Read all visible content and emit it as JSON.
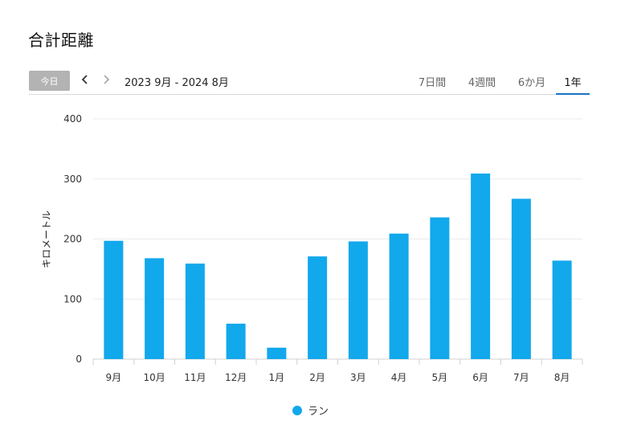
{
  "page": {
    "title": "合計距離"
  },
  "toolbar": {
    "today_label": "今日",
    "prev_icon": "chevron-left-icon",
    "next_icon": "chevron-right-icon",
    "range_label": "2023 9月 - 2024 8月",
    "tabs": [
      {
        "label": "7日間",
        "active": false
      },
      {
        "label": "4週間",
        "active": false
      },
      {
        "label": "6か月",
        "active": false
      },
      {
        "label": "1年",
        "active": true
      }
    ]
  },
  "colors": {
    "bar": "#12a8ec",
    "accent": "#1a73c7"
  },
  "chart_data": {
    "type": "bar",
    "categories": [
      "9月",
      "10月",
      "11月",
      "12月",
      "1月",
      "2月",
      "3月",
      "4月",
      "5月",
      "6月",
      "7月",
      "8月"
    ],
    "series": [
      {
        "name": "ラン",
        "values": [
          197,
          168,
          159,
          59,
          19,
          171,
          196,
          209,
          236,
          309,
          267,
          164
        ]
      }
    ],
    "ylabel": "キロメートル",
    "ylim": [
      0,
      400
    ],
    "yticks": [
      0,
      100,
      200,
      300,
      400
    ],
    "grid": true,
    "legend_position": "bottom"
  }
}
